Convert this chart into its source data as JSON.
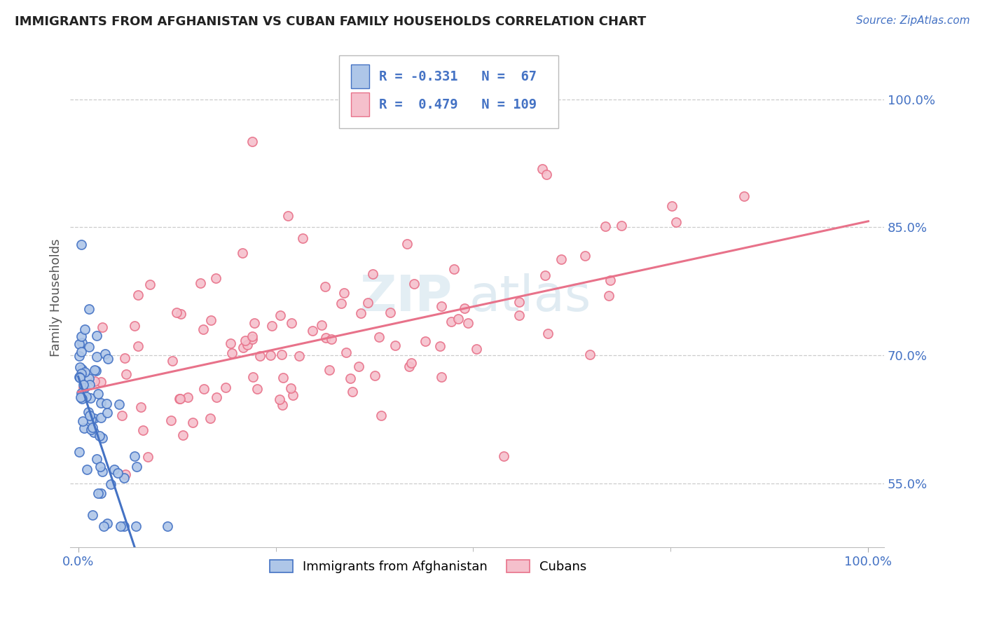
{
  "title": "IMMIGRANTS FROM AFGHANISTAN VS CUBAN FAMILY HOUSEHOLDS CORRELATION CHART",
  "source_text": "Source: ZipAtlas.com",
  "ylabel": "Family Households",
  "afghanistan_color": "#4472c4",
  "afghanistan_fill": "#aec6e8",
  "cuba_color": "#e8728a",
  "cuba_fill": "#f5c0cc",
  "afghanistan_R": -0.331,
  "afghanistan_N": 67,
  "cuba_R": 0.479,
  "cuba_N": 109,
  "legend_label1": "Immigrants from Afghanistan",
  "legend_label2": "Cubans",
  "watermark1": "ZIP",
  "watermark2": "atlas"
}
